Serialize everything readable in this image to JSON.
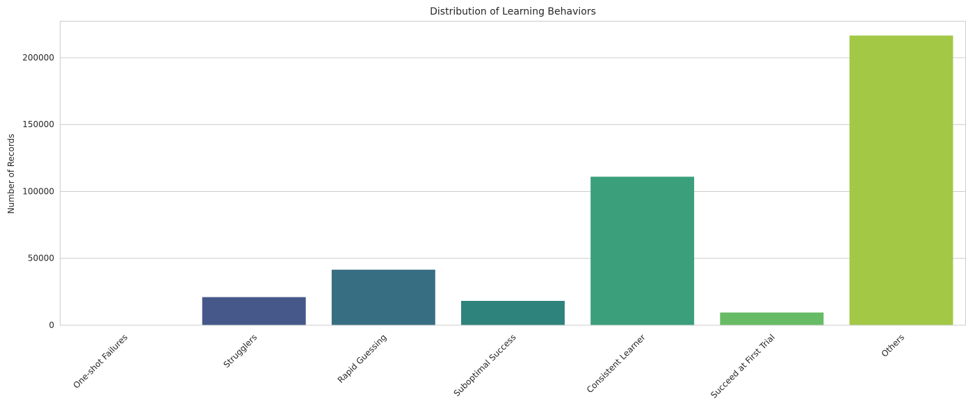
{
  "chart_data": {
    "type": "bar",
    "title": "Distribution of Learning Behaviors",
    "xlabel": "",
    "ylabel": "Number of Records",
    "categories": [
      "One-shot Failures",
      "Strugglers",
      "Rapid Guessing",
      "Suboptimal Success",
      "Consistent Learner",
      "Succeed at First Trial",
      "Others"
    ],
    "values": [
      150,
      21000,
      41500,
      18200,
      111000,
      9500,
      216500
    ],
    "colors": [
      "#440154",
      "#46588a",
      "#386e82",
      "#2e837c",
      "#3b9f7b",
      "#68bb65",
      "#a2c846"
    ],
    "ylim": [
      0,
      227500
    ],
    "yticks": [
      0,
      50000,
      100000,
      150000,
      200000
    ],
    "ytick_labels": [
      "0",
      "50000",
      "100000",
      "150000",
      "200000"
    ],
    "grid": true,
    "grid_axis": "y",
    "frame_color": "#cccccc",
    "grid_color": "#cccccc"
  }
}
